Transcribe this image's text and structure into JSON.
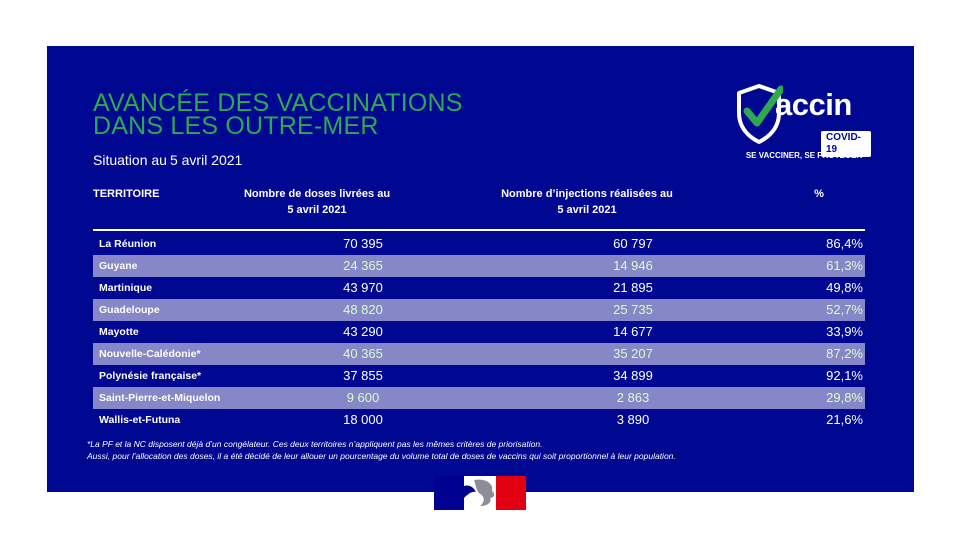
{
  "title": {
    "line1": "AVANCÉE DES VACCINATIONS",
    "line2": "DANS LES OUTRE-MER"
  },
  "subtitle": {
    "prefix": "Situation au",
    "date": "5 avril 2021"
  },
  "logo": {
    "word": "accin",
    "badge": "COVID-19",
    "slogan": "SE VACCINER, SE PROTÉGER"
  },
  "table": {
    "headers": {
      "territory": "TERRITOIRE",
      "doses_line1": "Nombre de doses livrées au",
      "doses_line2": "5 avril 2021",
      "injections_line1": "Nombre d’injections réalisées au",
      "injections_line2": "5 avril 2021",
      "percent": "%"
    },
    "rows": [
      {
        "territory": "La Réunion",
        "doses": "70 395",
        "injections": "60 797",
        "percent": "86,4%"
      },
      {
        "territory": "Guyane",
        "doses": "24 365",
        "injections": "14 946",
        "percent": "61,3%"
      },
      {
        "territory": "Martinique",
        "doses": "43 970",
        "injections": "21 895",
        "percent": "49,8%"
      },
      {
        "territory": "Guadeloupe",
        "doses": "48 820",
        "injections": "25 735",
        "percent": "52,7%"
      },
      {
        "territory": "Mayotte",
        "doses": "43 290",
        "injections": "14 677",
        "percent": "33,9%"
      },
      {
        "territory": "Nouvelle-Calédonie*",
        "doses": "40 365",
        "injections": "35 207",
        "percent": "87,2%"
      },
      {
        "territory": "Polynésie française*",
        "doses": "37 855",
        "injections": "34 899",
        "percent": "92,1%"
      },
      {
        "territory": "Saint-Pierre-et-Miquelon",
        "doses": "9 600",
        "injections": "2 863",
        "percent": "29,8%"
      },
      {
        "territory": "Wallis-et-Futuna",
        "doses": "18 000",
        "injections": "3 890",
        "percent": "21,6%"
      }
    ]
  },
  "notes": {
    "line1": "*La PF et la NC disposent déjà d’un congélateur. Ces deux territoires n’appliquent pas les mêmes critères de priorisation.",
    "line2": "Aussi, pour l’allocation des doses, il a été décidé de leur allouer un pourcentage du volume total de doses de vaccins qui soit proportionnel à leur population."
  },
  "colors": {
    "background": "#000891",
    "title": "#2fa84f",
    "row_alt": "#8587c6",
    "check": "#2fa84f"
  }
}
